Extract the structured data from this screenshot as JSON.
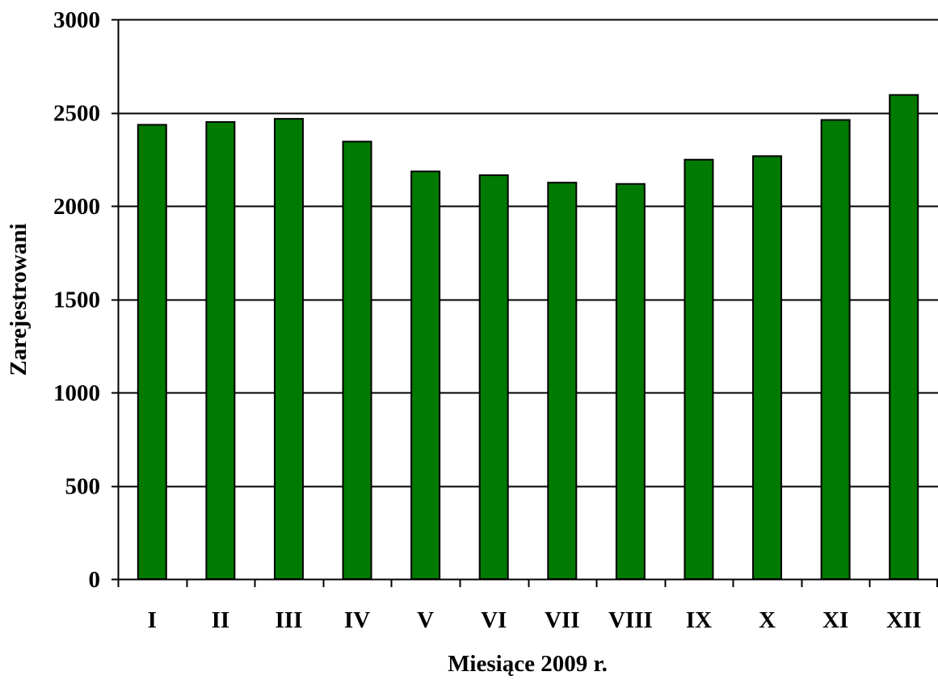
{
  "chart_data": {
    "type": "bar",
    "categories": [
      "I",
      "II",
      "III",
      "IV",
      "V",
      "VI",
      "VII",
      "VIII",
      "IX",
      "X",
      "XI",
      "XII"
    ],
    "values": [
      2435,
      2450,
      2467,
      2345,
      2185,
      2165,
      2125,
      2118,
      2248,
      2267,
      2461,
      2595
    ],
    "title": "",
    "xlabel": "Miesiące 2009 r.",
    "ylabel": "Zarejestrowani",
    "ylim": [
      0,
      3000
    ],
    "yticks": [
      0,
      500,
      1000,
      1500,
      2000,
      2500,
      3000
    ],
    "ytick_labels": [
      "0",
      "500",
      "1000",
      "1500",
      "2000",
      "2500",
      "3000"
    ],
    "grid": true,
    "legend": "none",
    "colors": {
      "bar_fill": "#007a00",
      "bar_stroke": "#000000",
      "grid": "#000000",
      "axis": "#000000"
    }
  }
}
